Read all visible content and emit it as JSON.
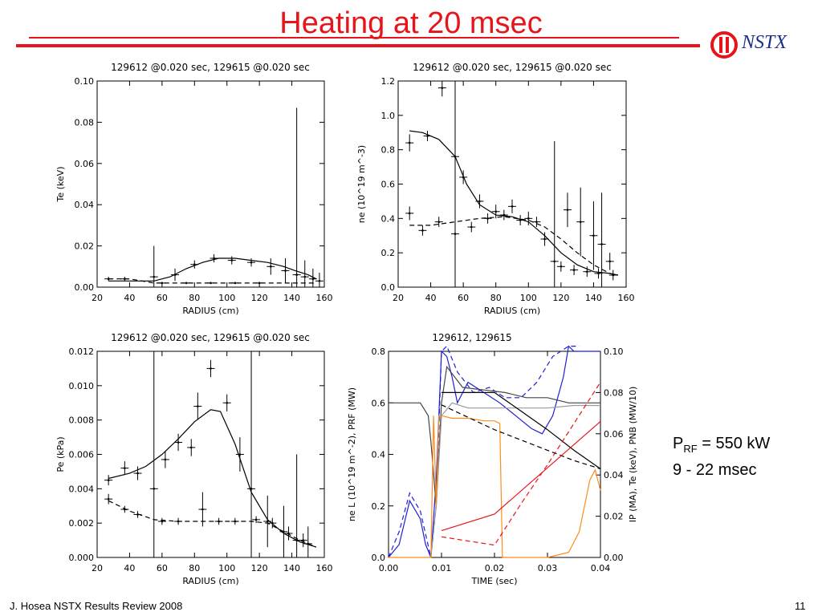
{
  "slide": {
    "title": "Heating at 20 msec",
    "logo_text": "NSTX",
    "footer_left": "J. Hosea  NSTX Results Review 2008",
    "page_number": "11",
    "annotation_line1_main": "P",
    "annotation_line1_sub": "RF",
    "annotation_line1_rest": " = 550 kW",
    "annotation_line2": "9 - 22 msec",
    "accent_color": "#e8141b",
    "logo_color": "#1b2f8a"
  },
  "chart_data": [
    {
      "type": "scatter",
      "title": "129612 @0.020 sec, 129615 @0.020 sec",
      "xlabel": "RADIUS (cm)",
      "ylabel": "Te (keV)",
      "xlim": [
        20,
        160
      ],
      "ylim": [
        0,
        0.1
      ],
      "xticks": [
        "20",
        "40",
        "60",
        "80",
        "100",
        "120",
        "140",
        "160"
      ],
      "yticks": [
        "0.00",
        "0.02",
        "0.04",
        "0.06",
        "0.08",
        "0.10"
      ],
      "series": [
        {
          "style": "solid",
          "x": [
            27,
            40,
            55,
            65,
            75,
            85,
            95,
            105,
            115,
            125,
            135,
            142,
            150,
            155
          ],
          "y": [
            0.003,
            0.003,
            0.003,
            0.005,
            0.009,
            0.012,
            0.014,
            0.014,
            0.013,
            0.012,
            0.01,
            0.008,
            0.006,
            0.004
          ]
        },
        {
          "style": "dashed",
          "x": [
            27,
            40,
            55,
            65,
            75,
            85,
            95,
            105,
            115,
            125,
            135,
            142,
            150,
            155
          ],
          "y": [
            0.004,
            0.004,
            0.002,
            0.002,
            0.002,
            0.002,
            0.002,
            0.002,
            0.002,
            0.002,
            0.002,
            0.002,
            0.002,
            0.002
          ]
        }
      ],
      "points": [
        {
          "x": 27,
          "y": 0.004,
          "ey": 0.001
        },
        {
          "x": 37,
          "y": 0.004,
          "ey": 0.001
        },
        {
          "x": 55,
          "y": 0.005,
          "ey": 0.015
        },
        {
          "x": 68,
          "y": 0.006,
          "ey": 0.003
        },
        {
          "x": 80,
          "y": 0.011,
          "ey": 0.002
        },
        {
          "x": 92,
          "y": 0.014,
          "ey": 0.002
        },
        {
          "x": 103,
          "y": 0.013,
          "ey": 0.002
        },
        {
          "x": 115,
          "y": 0.012,
          "ey": 0.002
        },
        {
          "x": 127,
          "y": 0.01,
          "ey": 0.004
        },
        {
          "x": 136,
          "y": 0.008,
          "ey": 0.006
        },
        {
          "x": 143,
          "y": 0.006,
          "ey": 0.081
        },
        {
          "x": 148,
          "y": 0.005,
          "ey": 0.008
        },
        {
          "x": 153,
          "y": 0.004,
          "ey": 0.005
        },
        {
          "x": 157,
          "y": 0.003,
          "ey": 0.004
        },
        {
          "x": 60,
          "y": 0.002,
          "ey": 0
        },
        {
          "x": 75,
          "y": 0.002,
          "ey": 0
        },
        {
          "x": 90,
          "y": 0.002,
          "ey": 0
        },
        {
          "x": 105,
          "y": 0.002,
          "ey": 0
        },
        {
          "x": 120,
          "y": 0.002,
          "ey": 0
        }
      ]
    },
    {
      "type": "scatter",
      "title": "129612 @0.020 sec, 129615 @0.020 sec",
      "xlabel": "RADIUS (cm)",
      "ylabel": "ne (10^19 m^-3)",
      "xlim": [
        20,
        160
      ],
      "ylim": [
        0,
        1.2
      ],
      "xticks": [
        "20",
        "40",
        "60",
        "80",
        "100",
        "120",
        "140",
        "160"
      ],
      "yticks": [
        "0.0",
        "0.2",
        "0.4",
        "0.6",
        "0.8",
        "1.0",
        "1.2"
      ],
      "series": [
        {
          "style": "solid",
          "x": [
            27,
            35,
            45,
            55,
            62,
            70,
            80,
            90,
            100,
            110,
            120,
            130,
            140,
            150,
            155
          ],
          "y": [
            0.91,
            0.9,
            0.86,
            0.76,
            0.6,
            0.48,
            0.42,
            0.41,
            0.38,
            0.3,
            0.2,
            0.13,
            0.09,
            0.08,
            0.07
          ]
        },
        {
          "style": "dashed",
          "x": [
            27,
            40,
            55,
            70,
            85,
            100,
            110,
            120,
            130,
            140,
            150,
            155
          ],
          "y": [
            0.36,
            0.36,
            0.38,
            0.4,
            0.41,
            0.39,
            0.35,
            0.28,
            0.2,
            0.13,
            0.08,
            0.07
          ]
        }
      ],
      "points": [
        {
          "x": 27,
          "y": 0.84,
          "ey": 0.05
        },
        {
          "x": 38,
          "y": 0.88,
          "ey": 0.03
        },
        {
          "x": 47,
          "y": 1.16,
          "ey": 0.05
        },
        {
          "x": 55,
          "y": 0.76,
          "ey": 1.1
        },
        {
          "x": 60,
          "y": 0.64,
          "ey": 0.04
        },
        {
          "x": 70,
          "y": 0.5,
          "ey": 0.04
        },
        {
          "x": 80,
          "y": 0.44,
          "ey": 0.04
        },
        {
          "x": 90,
          "y": 0.47,
          "ey": 0.04
        },
        {
          "x": 100,
          "y": 0.4,
          "ey": 0.04
        },
        {
          "x": 110,
          "y": 0.28,
          "ey": 0.04
        },
        {
          "x": 116,
          "y": 0.15,
          "ey": 0.7
        },
        {
          "x": 124,
          "y": 0.45,
          "ey": 0.1
        },
        {
          "x": 132,
          "y": 0.38,
          "ey": 0.2
        },
        {
          "x": 140,
          "y": 0.3,
          "ey": 0.2
        },
        {
          "x": 145,
          "y": 0.25,
          "ey": 0.3
        },
        {
          "x": 150,
          "y": 0.15,
          "ey": 0.05
        },
        {
          "x": 27,
          "y": 0.43,
          "ey": 0.04
        },
        {
          "x": 35,
          "y": 0.33,
          "ey": 0.03
        },
        {
          "x": 45,
          "y": 0.38,
          "ey": 0.03
        },
        {
          "x": 55,
          "y": 0.31,
          "ey": 0.03
        },
        {
          "x": 65,
          "y": 0.35,
          "ey": 0.03
        },
        {
          "x": 75,
          "y": 0.4,
          "ey": 0.03
        },
        {
          "x": 85,
          "y": 0.42,
          "ey": 0.03
        },
        {
          "x": 95,
          "y": 0.39,
          "ey": 0.03
        },
        {
          "x": 105,
          "y": 0.38,
          "ey": 0.03
        },
        {
          "x": 120,
          "y": 0.12,
          "ey": 0.03
        },
        {
          "x": 128,
          "y": 0.1,
          "ey": 0.03
        },
        {
          "x": 136,
          "y": 0.09,
          "ey": 0.03
        },
        {
          "x": 143,
          "y": 0.08,
          "ey": 0.03
        },
        {
          "x": 152,
          "y": 0.07,
          "ey": 0.03
        }
      ]
    },
    {
      "type": "scatter",
      "title": "129612 @0.020 sec, 129615 @0.020 sec",
      "xlabel": "RADIUS (cm)",
      "ylabel": "Pe (kPa)",
      "xlim": [
        20,
        160
      ],
      "ylim": [
        0,
        0.012
      ],
      "xticks": [
        "20",
        "40",
        "60",
        "80",
        "100",
        "120",
        "140",
        "160"
      ],
      "yticks": [
        "0.000",
        "0.002",
        "0.004",
        "0.006",
        "0.008",
        "0.010",
        "0.012"
      ],
      "series": [
        {
          "style": "solid",
          "x": [
            27,
            40,
            50,
            60,
            70,
            80,
            90,
            96,
            105,
            115,
            125,
            135,
            145,
            155
          ],
          "y": [
            0.0046,
            0.0049,
            0.0053,
            0.006,
            0.0069,
            0.0079,
            0.0086,
            0.0085,
            0.0066,
            0.0038,
            0.0022,
            0.0014,
            0.0009,
            0.0006
          ]
        },
        {
          "style": "dashed",
          "x": [
            27,
            40,
            55,
            70,
            85,
            100,
            115,
            125,
            135,
            145,
            155
          ],
          "y": [
            0.0033,
            0.0027,
            0.0022,
            0.0021,
            0.0021,
            0.0021,
            0.0021,
            0.002,
            0.0015,
            0.001,
            0.0006
          ]
        }
      ],
      "points": [
        {
          "x": 27,
          "y": 0.0045,
          "ey": 0.0003
        },
        {
          "x": 37,
          "y": 0.0052,
          "ey": 0.0004
        },
        {
          "x": 45,
          "y": 0.0049,
          "ey": 0.0004
        },
        {
          "x": 55,
          "y": 0.004,
          "ey": 0.0099
        },
        {
          "x": 62,
          "y": 0.0057,
          "ey": 0.0005
        },
        {
          "x": 70,
          "y": 0.0067,
          "ey": 0.0005
        },
        {
          "x": 78,
          "y": 0.0064,
          "ey": 0.0005
        },
        {
          "x": 82,
          "y": 0.0088,
          "ey": 0.0008
        },
        {
          "x": 90,
          "y": 0.011,
          "ey": 0.0005
        },
        {
          "x": 100,
          "y": 0.009,
          "ey": 0.0005
        },
        {
          "x": 108,
          "y": 0.006,
          "ey": 0.001
        },
        {
          "x": 115,
          "y": 0.004,
          "ey": 0.008
        },
        {
          "x": 125,
          "y": 0.0021,
          "ey": 0.0015
        },
        {
          "x": 135,
          "y": 0.0015,
          "ey": 0.0015
        },
        {
          "x": 143,
          "y": 0.001,
          "ey": 0.005
        },
        {
          "x": 150,
          "y": 0.0008,
          "ey": 0.001
        },
        {
          "x": 27,
          "y": 0.0034,
          "ey": 0.0003
        },
        {
          "x": 37,
          "y": 0.0028,
          "ey": 0.0002
        },
        {
          "x": 45,
          "y": 0.0025,
          "ey": 0.0002
        },
        {
          "x": 60,
          "y": 0.0021,
          "ey": 0.0002
        },
        {
          "x": 70,
          "y": 0.0021,
          "ey": 0.0002
        },
        {
          "x": 85,
          "y": 0.0028,
          "ey": 0.001
        },
        {
          "x": 95,
          "y": 0.0021,
          "ey": 0.0002
        },
        {
          "x": 105,
          "y": 0.0021,
          "ey": 0.0002
        },
        {
          "x": 118,
          "y": 0.0022,
          "ey": 0.0002
        },
        {
          "x": 128,
          "y": 0.002,
          "ey": 0.0003
        },
        {
          "x": 138,
          "y": 0.0014,
          "ey": 0.0004
        },
        {
          "x": 147,
          "y": 0.001,
          "ey": 0.0004
        }
      ]
    },
    {
      "type": "line",
      "title": "129612, 129615",
      "xlabel": "TIME (sec)",
      "ylabel": "ne L (10^19 m^-2), PRF (MW)",
      "y2label": "IP (MA), Te (keV), PNB (MW/10)",
      "xlim": [
        0,
        0.04
      ],
      "ylim": [
        0,
        0.8
      ],
      "y2lim": [
        0,
        0.1
      ],
      "xticks": [
        "0.00",
        "0.01",
        "0.02",
        "0.03",
        "0.04"
      ],
      "yticks": [
        "0.0",
        "0.2",
        "0.4",
        "0.6",
        "0.8"
      ],
      "y2ticks": [
        "0.00",
        "0.02",
        "0.04",
        "0.06",
        "0.08",
        "0.10"
      ],
      "series": [
        {
          "color": "#1f1fd6",
          "style": "solid",
          "x": [
            0,
            0.002,
            0.004,
            0.006,
            0.007,
            0.008,
            0.009,
            0.01,
            0.011,
            0.012,
            0.013,
            0.015,
            0.018,
            0.021,
            0.024,
            0.027,
            0.029,
            0.031,
            0.033,
            0.034,
            0.035,
            0.036,
            0.04
          ],
          "y": [
            0.0,
            0.05,
            0.22,
            0.15,
            0.05,
            0.0,
            0.3,
            0.8,
            0.78,
            0.7,
            0.6,
            0.68,
            0.64,
            0.6,
            0.55,
            0.5,
            0.48,
            0.55,
            0.7,
            0.82,
            0.8,
            0.8,
            0.8
          ]
        },
        {
          "color": "#1f1fd6",
          "style": "dashed",
          "x": [
            0,
            0.002,
            0.004,
            0.006,
            0.008,
            0.009,
            0.01,
            0.011,
            0.013,
            0.016,
            0.019,
            0.022,
            0.025,
            0.028,
            0.031,
            0.034,
            0.036
          ],
          "y": [
            0.0,
            0.1,
            0.25,
            0.18,
            0.0,
            0.2,
            0.8,
            0.82,
            0.72,
            0.64,
            0.66,
            0.62,
            0.62,
            0.68,
            0.78,
            0.82,
            0.82
          ]
        },
        {
          "color": "#444444",
          "style": "solid",
          "x": [
            0,
            0.006,
            0.0075,
            0.008,
            0.009,
            0.01,
            0.011,
            0.014,
            0.018,
            0.022,
            0.026,
            0.03,
            0.034,
            0.038,
            0.04
          ],
          "y": [
            0.6,
            0.6,
            0.55,
            0.45,
            0.2,
            0.6,
            0.74,
            0.66,
            0.65,
            0.64,
            0.62,
            0.62,
            0.6,
            0.6,
            0.6
          ]
        },
        {
          "color": "#999999",
          "style": "solid",
          "x": [
            0.008,
            0.009,
            0.01,
            0.012,
            0.015,
            0.02,
            0.025,
            0.03,
            0.035,
            0.04
          ],
          "y": [
            0.0,
            0.2,
            0.55,
            0.6,
            0.58,
            0.58,
            0.58,
            0.58,
            0.59,
            0.59
          ]
        },
        {
          "color": "#ff8c1a",
          "style": "solid",
          "x": [
            0,
            0.008,
            0.0085,
            0.009,
            0.0095,
            0.01,
            0.012,
            0.015,
            0.018,
            0.02,
            0.021,
            0.0215,
            0.022,
            0.03,
            0.034,
            0.036,
            0.038,
            0.039,
            0.04
          ],
          "y": [
            0.0,
            0.0,
            0.55,
            0.2,
            0.55,
            0.55,
            0.54,
            0.54,
            0.53,
            0.53,
            0.52,
            0.0,
            0.0,
            0.0,
            0.02,
            0.1,
            0.3,
            0.34,
            0.26
          ]
        },
        {
          "color": "#000000",
          "style": "solid",
          "x": [
            0.01,
            0.02,
            0.025,
            0.03,
            0.035,
            0.04
          ],
          "y": [
            0.08,
            0.08,
            0.071,
            0.062,
            0.052,
            0.043
          ],
          "axis": "y2"
        },
        {
          "color": "#000000",
          "style": "dashed",
          "x": [
            0.01,
            0.02,
            0.025,
            0.03,
            0.035,
            0.04
          ],
          "y": [
            0.074,
            0.062,
            0.057,
            0.052,
            0.047,
            0.043
          ],
          "axis": "y2"
        },
        {
          "color": "#e8141b",
          "style": "solid",
          "x": [
            0.01,
            0.02,
            0.04
          ],
          "y": [
            0.013,
            0.021,
            0.066
          ],
          "axis": "y2"
        },
        {
          "color": "#e8141b",
          "style": "dashed",
          "x": [
            0.01,
            0.02,
            0.025,
            0.03,
            0.035,
            0.04
          ],
          "y": [
            0.01,
            0.006,
            0.026,
            0.045,
            0.065,
            0.085
          ],
          "axis": "y2"
        }
      ]
    }
  ]
}
